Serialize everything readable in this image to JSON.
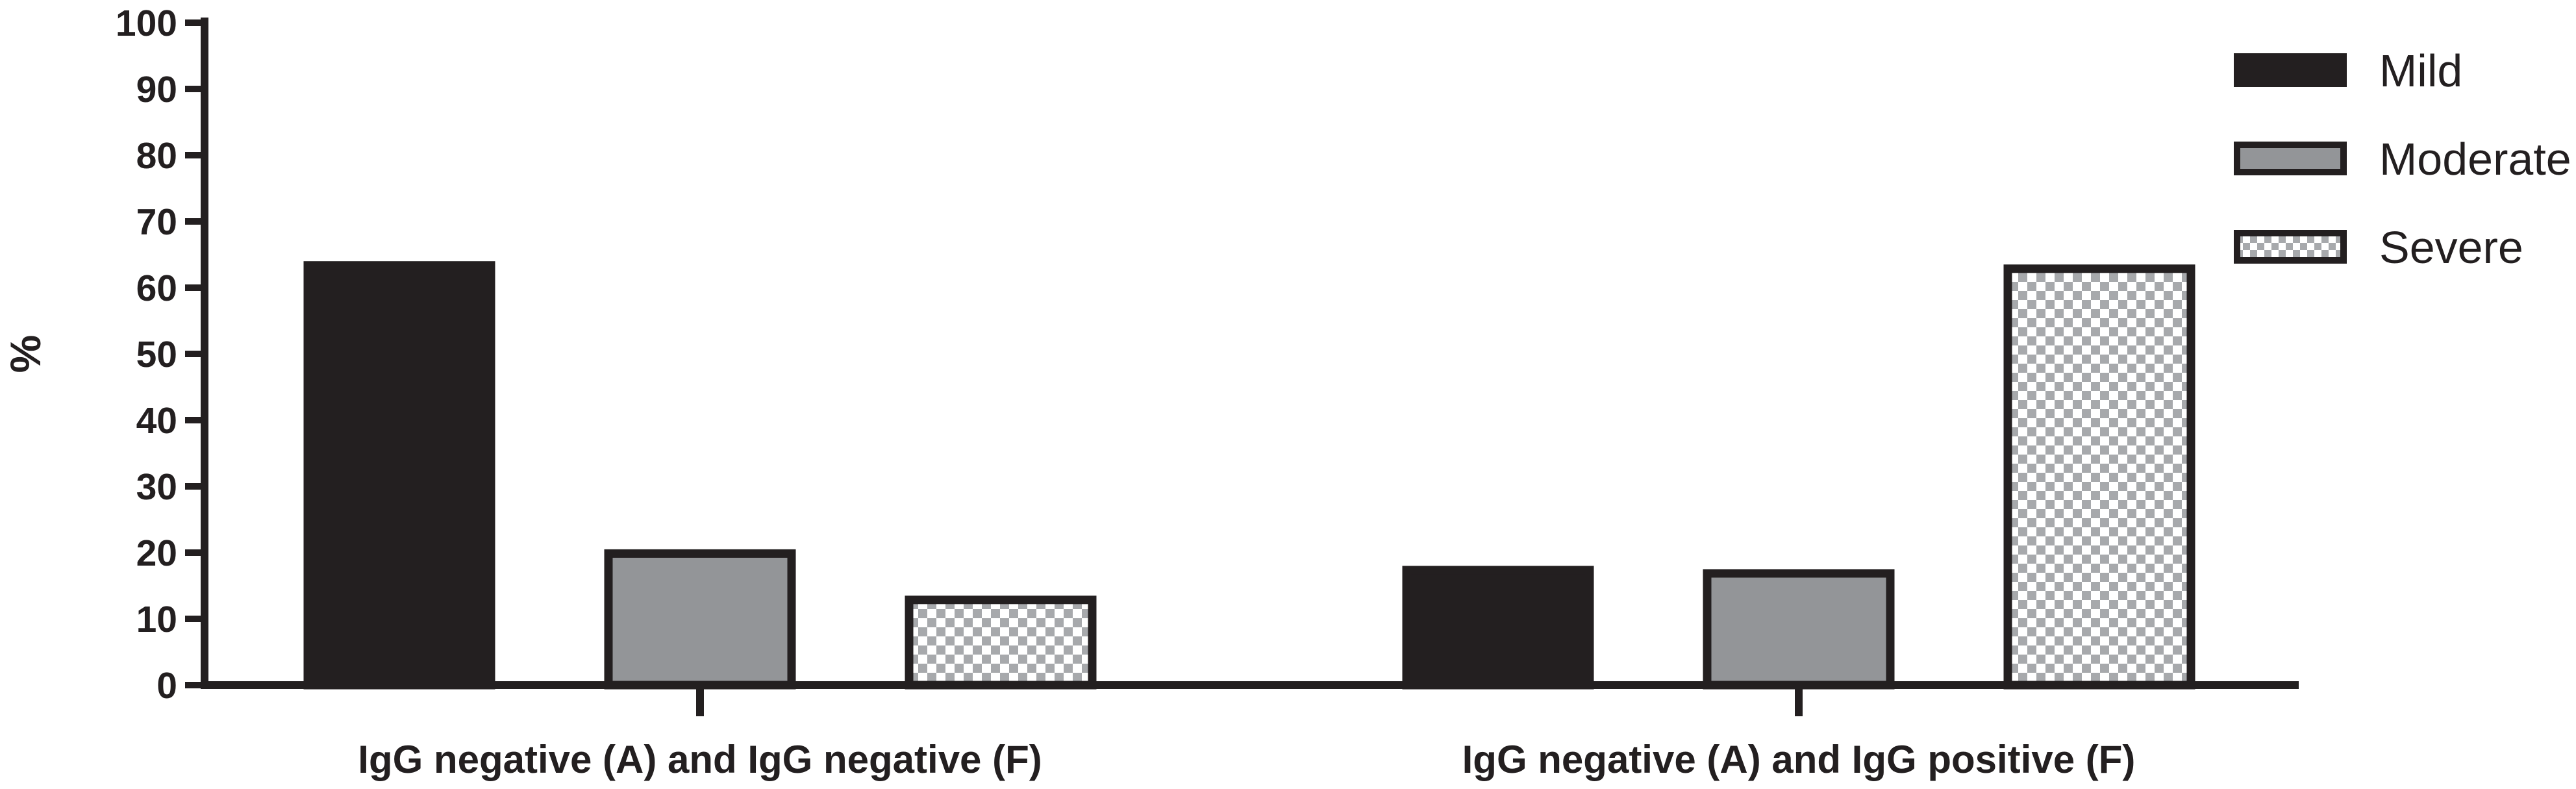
{
  "chart_data": {
    "type": "bar",
    "title": "",
    "xlabel": "",
    "ylabel": "%",
    "ylim": [
      0,
      100
    ],
    "yticks": [
      0,
      10,
      20,
      30,
      40,
      50,
      60,
      70,
      80,
      90,
      100
    ],
    "categories": [
      "IgG negative (A) and IgG negative (F)",
      "IgG negative (A) and IgG positive (F)"
    ],
    "series": [
      {
        "name": "Mild",
        "values": [
          64,
          18
        ],
        "color": "#231f20",
        "pattern": "solid"
      },
      {
        "name": "Moderate",
        "values": [
          20.5,
          17.5
        ],
        "color": "#939598",
        "pattern": "solid"
      },
      {
        "name": "Severe",
        "values": [
          13.5,
          63.5
        ],
        "color": "#ffffff",
        "pattern": "checker"
      }
    ],
    "grid": false,
    "legend": "top-right",
    "colors": {
      "axis": "#231f20",
      "bar_stroke": "#231f20",
      "checker_dark": "#a7a9ac",
      "checker_light": "#ffffff"
    }
  }
}
